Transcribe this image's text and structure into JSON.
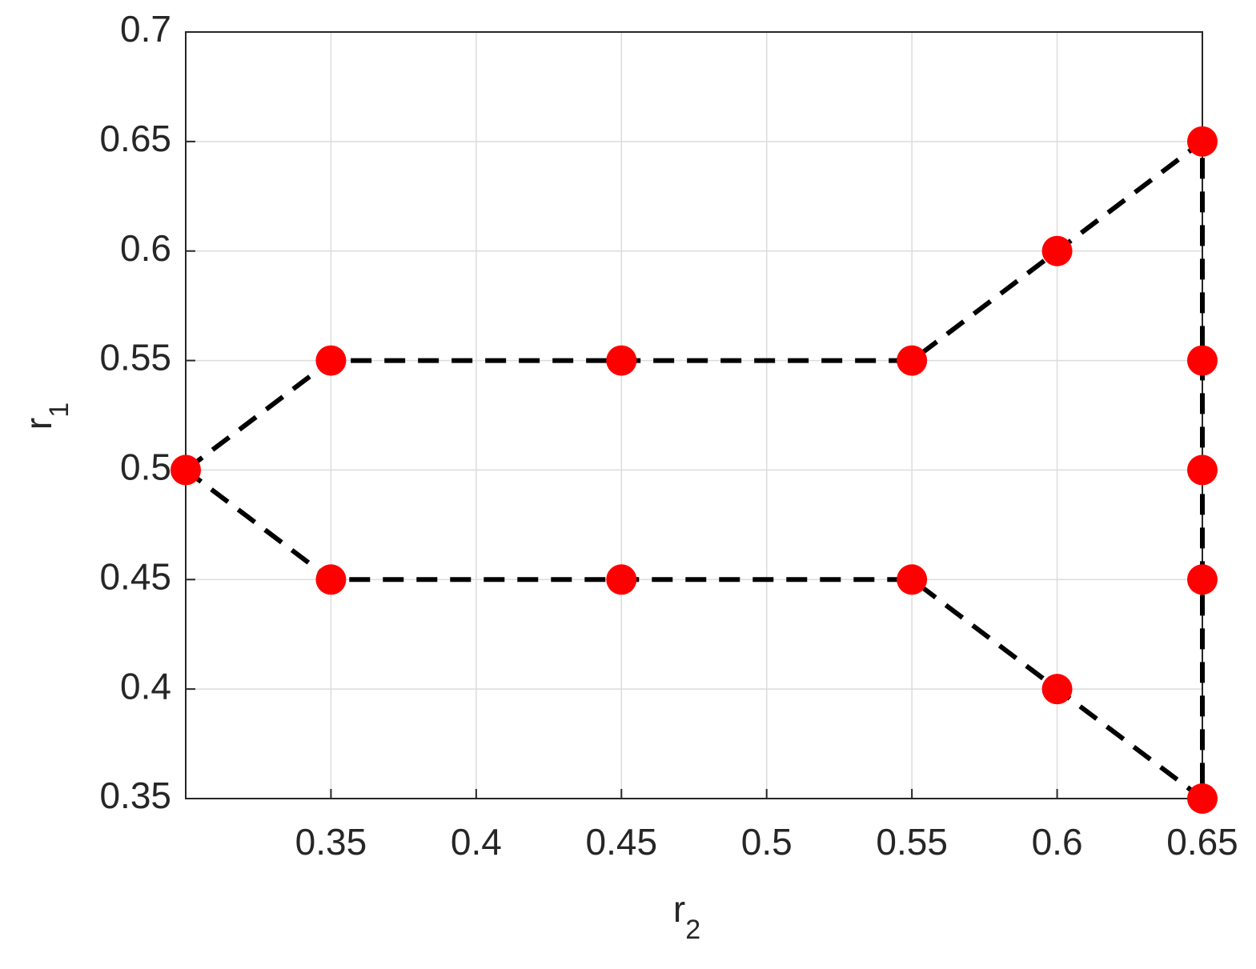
{
  "chart_data": {
    "type": "scatter",
    "xlabel": "r",
    "xlabel_sub": "2",
    "ylabel": "r",
    "ylabel_sub": "1",
    "xlim": [
      0.3,
      0.65
    ],
    "xticks": [
      0.35,
      0.4,
      0.45,
      0.5,
      0.55,
      0.6,
      0.65
    ],
    "ylim": [
      0.35,
      0.7
    ],
    "yticks": [
      0.35,
      0.4,
      0.45,
      0.5,
      0.55,
      0.6,
      0.65,
      0.7
    ],
    "grid": true,
    "series": [
      {
        "kind": "line",
        "dash": true,
        "color": "#000000",
        "x": [
          0.3,
          0.35,
          0.45,
          0.55,
          0.6,
          0.65,
          0.65,
          0.65,
          0.65,
          0.65,
          0.6,
          0.55,
          0.45,
          0.35,
          0.3
        ],
        "y": [
          0.5,
          0.55,
          0.55,
          0.55,
          0.6,
          0.65,
          0.55,
          0.5,
          0.45,
          0.35,
          0.4,
          0.45,
          0.45,
          0.45,
          0.5
        ]
      },
      {
        "kind": "markers",
        "color": "#ff0000",
        "x": [
          0.3,
          0.35,
          0.45,
          0.55,
          0.6,
          0.65,
          0.65,
          0.65,
          0.65,
          0.65,
          0.6,
          0.55,
          0.45,
          0.35
        ],
        "y": [
          0.5,
          0.55,
          0.55,
          0.55,
          0.6,
          0.65,
          0.55,
          0.5,
          0.45,
          0.35,
          0.4,
          0.45,
          0.45,
          0.45
        ]
      }
    ]
  }
}
